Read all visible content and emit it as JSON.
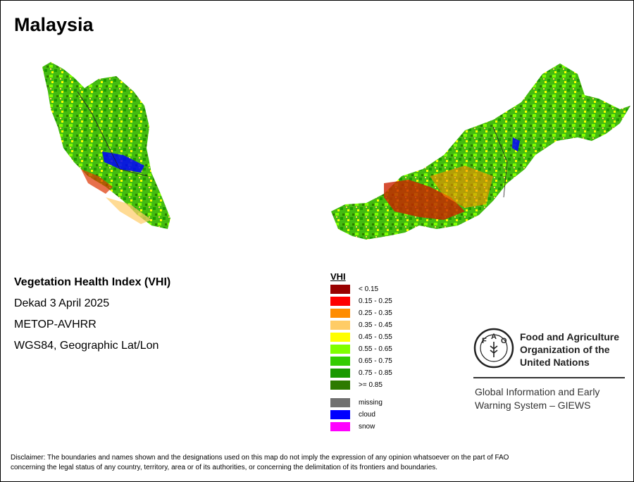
{
  "title": "Malaysia",
  "info": {
    "index_name": "Vegetation Health Index (VHI)",
    "period": "Dekad 3 April 2025",
    "sensor": "METOP-AVHRR",
    "projection": "WGS84, Geographic Lat/Lon"
  },
  "legend": {
    "title": "VHI",
    "classes": [
      {
        "label": "< 0.15",
        "color": "#990000"
      },
      {
        "label": "0.15 - 0.25",
        "color": "#ff0000"
      },
      {
        "label": "0.25 - 0.35",
        "color": "#ff8c00"
      },
      {
        "label": "0.35 - 0.45",
        "color": "#ffcc66"
      },
      {
        "label": "0.45 - 0.55",
        "color": "#ffff00"
      },
      {
        "label": "0.55 - 0.65",
        "color": "#80ff00"
      },
      {
        "label": "0.65 - 0.75",
        "color": "#33cc00"
      },
      {
        "label": "0.75 - 0.85",
        "color": "#1a9900"
      },
      {
        "label": ">= 0.85",
        "color": "#2d7a00"
      }
    ],
    "extras": [
      {
        "label": "missing",
        "color": "#707070"
      },
      {
        "label": "cloud",
        "color": "#0000ff"
      },
      {
        "label": "snow",
        "color": "#ff00ff"
      }
    ]
  },
  "fao": {
    "name_line1": "Food and Agriculture",
    "name_line2": "Organization of the",
    "name_line3": "United Nations",
    "system_line1": "Global Information and Early",
    "system_line2": "Warning System – GIEWS",
    "logo_text": "FAO FIAT PANIS"
  },
  "disclaimer_line1": "Disclaimer: The boundaries and names shown and the designations used on this map do not imply the expression of any opinion whatsoever on the part of FAO",
  "disclaimer_line2": "concerning the legal status of any country, territory, area or of its authorities, or concerning the delimitation of its frontiers and boundaries."
}
